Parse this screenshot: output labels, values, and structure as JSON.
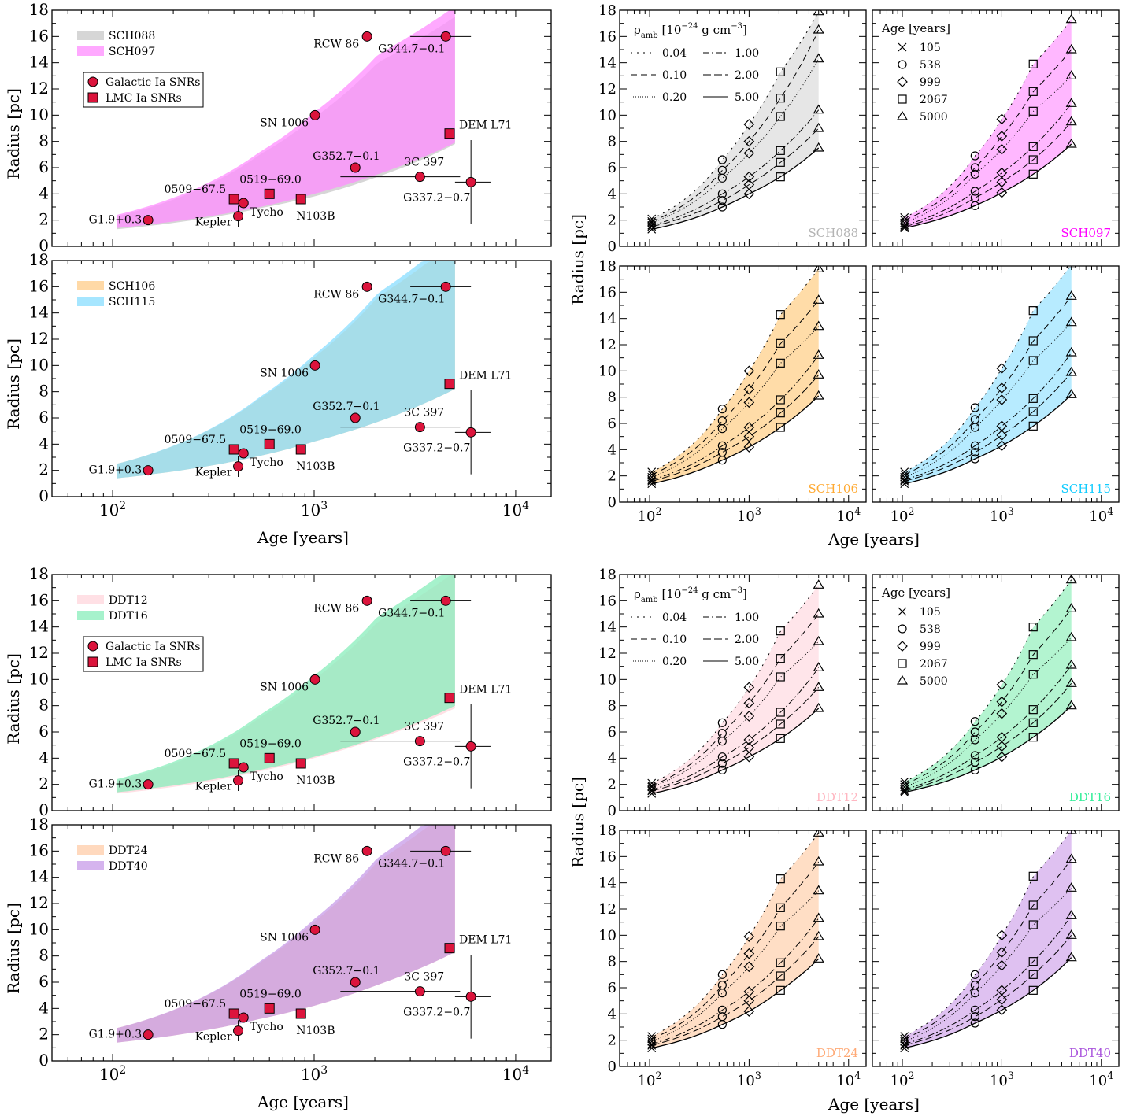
{
  "figure": {
    "ylabel": "Radius [pc]",
    "xlabel": "Age [years]",
    "density_legend_title": "ρ_amb [10^−24 g cm^−3]",
    "age_legend_title": "Age [years]",
    "snr_marker_legend": [
      "Galactic Ia SNRs",
      "LMC Ia SNRs"
    ]
  },
  "chart_data": [
    {
      "type": "area",
      "title": "",
      "xlabel": "Age [years]",
      "ylabel": "Radius [pc]",
      "xscale": "log",
      "xlim": [
        50,
        15000
      ],
      "ylim": [
        0,
        18
      ],
      "x_ticks": [
        "10^2",
        "10^3",
        "10^4"
      ],
      "y_ticks": [
        0,
        2,
        4,
        6,
        8,
        10,
        12,
        14,
        16,
        18
      ],
      "legend_position": "top-left",
      "series": [
        {
          "name": "SCH088",
          "color": "#c8c8c8",
          "lower": [
            [
              105,
              1.3
            ],
            [
              538,
              2.9
            ],
            [
              999,
              3.8
            ],
            [
              2067,
              5.3
            ],
            [
              5000,
              7.8
            ]
          ],
          "upper": [
            [
              105,
              2.3
            ],
            [
              538,
              7.0
            ],
            [
              999,
              9.8
            ],
            [
              2067,
              14.0
            ],
            [
              5000,
              17.5
            ]
          ]
        },
        {
          "name": "SCH097",
          "color": "#ff8cff",
          "lower": [
            [
              105,
              1.4
            ],
            [
              538,
              3.0
            ],
            [
              999,
              4.0
            ],
            [
              2067,
              5.5
            ],
            [
              5000,
              7.9
            ]
          ],
          "upper": [
            [
              105,
              2.4
            ],
            [
              538,
              7.2
            ],
            [
              999,
              10.2
            ],
            [
              2067,
              14.6
            ],
            [
              5000,
              18.3
            ]
          ]
        }
      ],
      "snrs": [
        {
          "name": "G1.9+0.3",
          "x": 150,
          "y": 2.0,
          "kind": "galactic"
        },
        {
          "name": "Kepler",
          "x": 420,
          "y": 2.3,
          "kind": "galactic",
          "yerr": 0.8
        },
        {
          "name": "Tycho",
          "x": 446,
          "y": 3.3,
          "kind": "galactic"
        },
        {
          "name": "0509−67.5",
          "x": 400,
          "y": 3.6,
          "kind": "lmc"
        },
        {
          "name": "0519−69.0",
          "x": 600,
          "y": 4.0,
          "kind": "lmc"
        },
        {
          "name": "N103B",
          "x": 860,
          "y": 3.6,
          "kind": "lmc"
        },
        {
          "name": "SN 1006",
          "x": 1010,
          "y": 10.0,
          "kind": "galactic"
        },
        {
          "name": "G352.7−0.1",
          "x": 1600,
          "y": 6.0,
          "kind": "galactic"
        },
        {
          "name": "RCW 86",
          "x": 1830,
          "y": 16.0,
          "kind": "galactic"
        },
        {
          "name": "3C 397",
          "x": 3350,
          "y": 5.3,
          "kind": "galactic",
          "xerr": [
            1350,
            5300
          ]
        },
        {
          "name": "G344.7−0.1",
          "x": 4500,
          "y": 16.0,
          "kind": "galactic",
          "xerr": [
            3000,
            6000
          ]
        },
        {
          "name": "DEM L71",
          "x": 4700,
          "y": 8.6,
          "kind": "lmc"
        },
        {
          "name": "G337.2−0.7",
          "x": 6000,
          "y": 4.9,
          "kind": "galactic",
          "xerr": [
            5000,
            7500
          ],
          "yerr": 3.2
        }
      ]
    },
    {
      "type": "area",
      "title": "",
      "xlabel": "Age [years]",
      "ylabel": "Radius [pc]",
      "xscale": "log",
      "xlim": [
        50,
        15000
      ],
      "ylim": [
        0,
        18
      ],
      "legend_position": "top-left",
      "series": [
        {
          "name": "SCH106",
          "color": "#ffcc88",
          "lower": [
            [
              105,
              1.4
            ],
            [
              538,
              3.1
            ],
            [
              999,
              4.2
            ],
            [
              2067,
              5.7
            ],
            [
              5000,
              8.2
            ]
          ],
          "upper": [
            [
              105,
              2.5
            ],
            [
              538,
              7.5
            ],
            [
              999,
              10.6
            ],
            [
              2067,
              15.2
            ],
            [
              5000,
              19.5
            ]
          ]
        },
        {
          "name": "SCH115",
          "color": "#88ddff",
          "lower": [
            [
              105,
              1.4
            ],
            [
              538,
              3.1
            ],
            [
              999,
              4.2
            ],
            [
              2067,
              5.7
            ],
            [
              5000,
              8.2
            ]
          ],
          "upper": [
            [
              105,
              2.5
            ],
            [
              538,
              7.6
            ],
            [
              999,
              10.8
            ],
            [
              2067,
              15.5
            ],
            [
              5000,
              20.0
            ]
          ]
        }
      ],
      "snrs": "same as panel 1"
    },
    {
      "type": "area",
      "title": "",
      "xlabel": "Age [years]",
      "ylabel": "Radius [pc]",
      "xscale": "log",
      "xlim": [
        50,
        15000
      ],
      "ylim": [
        0,
        18
      ],
      "legend_position": "top-left",
      "series": [
        {
          "name": "DDT12",
          "color": "#ffd6dc",
          "lower": [
            [
              105,
              1.3
            ],
            [
              538,
              3.0
            ],
            [
              999,
              4.0
            ],
            [
              2067,
              5.5
            ],
            [
              5000,
              7.8
            ]
          ],
          "upper": [
            [
              105,
              2.3
            ],
            [
              538,
              7.1
            ],
            [
              999,
              10.0
            ],
            [
              2067,
              14.4
            ],
            [
              5000,
              18.2
            ]
          ]
        },
        {
          "name": "DDT16",
          "color": "#88eebb",
          "lower": [
            [
              105,
              1.4
            ],
            [
              538,
              3.1
            ],
            [
              999,
              4.1
            ],
            [
              2067,
              5.6
            ],
            [
              5000,
              8.0
            ]
          ],
          "upper": [
            [
              105,
              2.4
            ],
            [
              538,
              7.3
            ],
            [
              999,
              10.3
            ],
            [
              2067,
              14.8
            ],
            [
              5000,
              18.8
            ]
          ]
        }
      ],
      "snrs": "same as panel 1"
    },
    {
      "type": "area",
      "title": "",
      "xlabel": "Age [years]",
      "ylabel": "Radius [pc]",
      "xscale": "log",
      "xlim": [
        50,
        15000
      ],
      "ylim": [
        0,
        18
      ],
      "legend_position": "top-left",
      "series": [
        {
          "name": "DDT24",
          "color": "#ffcca8",
          "lower": [
            [
              105,
              1.4
            ],
            [
              538,
              3.2
            ],
            [
              999,
              4.2
            ],
            [
              2067,
              5.8
            ],
            [
              5000,
              8.3
            ]
          ],
          "upper": [
            [
              105,
              2.5
            ],
            [
              538,
              7.5
            ],
            [
              999,
              10.6
            ],
            [
              2067,
              15.2
            ],
            [
              5000,
              19.5
            ]
          ]
        },
        {
          "name": "DDT40",
          "color": "#c79be8",
          "lower": [
            [
              105,
              1.4
            ],
            [
              538,
              3.2
            ],
            [
              999,
              4.2
            ],
            [
              2067,
              5.8
            ],
            [
              5000,
              8.3
            ]
          ],
          "upper": [
            [
              105,
              2.5
            ],
            [
              538,
              7.6
            ],
            [
              999,
              10.8
            ],
            [
              2067,
              15.5
            ],
            [
              5000,
              20.0
            ]
          ]
        }
      ],
      "snrs": "same as panel 1"
    },
    {
      "type": "scatter",
      "grid_of_models": true,
      "xscale": "log",
      "xlim": [
        50,
        15000
      ],
      "ylim": [
        0,
        18
      ],
      "densities": [
        "0.04",
        "0.10",
        "0.20",
        "1.00",
        "2.00",
        "5.00"
      ],
      "ages": [
        "105",
        "538",
        "999",
        "2067",
        "5000"
      ],
      "markers": {
        "105": "cross",
        "538": "circle",
        "999": "diamond",
        "2067": "square",
        "5000": "triangle"
      },
      "panels": [
        {
          "name": "SCH088",
          "color": "#b4b4b4",
          "fill": "#e2e2e2",
          "r": {
            "0.04": [
              2.1,
              6.6,
              9.3,
              13.3,
              17.9
            ],
            "0.10": [
              1.9,
              5.8,
              8.0,
              11.3,
              16.5
            ],
            "0.20": [
              1.8,
              5.2,
              7.1,
              9.9,
              14.3
            ],
            "1.00": [
              1.6,
              4.0,
              5.3,
              7.3,
              10.4
            ],
            "2.00": [
              1.5,
              3.5,
              4.7,
              6.4,
              9.0
            ],
            "5.00": [
              1.3,
              3.0,
              4.0,
              5.3,
              7.5
            ]
          }
        },
        {
          "name": "SCH097",
          "color": "#ff00ff",
          "fill": "#ffaaff",
          "r": {
            "0.04": [
              2.2,
              6.9,
              9.7,
              13.9,
              17.3
            ],
            "0.10": [
              2.0,
              6.0,
              8.4,
              11.8,
              15.0
            ],
            "0.20": [
              1.8,
              5.5,
              7.4,
              10.3,
              13.0
            ],
            "1.00": [
              1.6,
              4.2,
              5.6,
              7.6,
              10.9
            ],
            "2.00": [
              1.5,
              3.7,
              4.9,
              6.6,
              9.5
            ],
            "5.00": [
              1.4,
              3.1,
              4.1,
              5.5,
              7.8
            ]
          }
        },
        {
          "name": "SCH106",
          "color": "#ffaa33",
          "fill": "#ffd699",
          "r": {
            "0.04": [
              2.3,
              7.1,
              10.0,
              14.3,
              17.8
            ],
            "0.10": [
              2.1,
              6.2,
              8.6,
              12.1,
              15.4
            ],
            "0.20": [
              1.9,
              5.6,
              7.6,
              10.6,
              13.4
            ],
            "1.00": [
              1.7,
              4.3,
              5.7,
              7.8,
              11.2
            ],
            "2.00": [
              1.6,
              3.8,
              5.0,
              6.8,
              9.7
            ],
            "5.00": [
              1.4,
              3.2,
              4.2,
              5.7,
              8.1
            ]
          }
        },
        {
          "name": "SCH115",
          "color": "#11ccff",
          "fill": "#aae8ff",
          "r": {
            "0.04": [
              2.3,
              7.2,
              10.2,
              14.6,
              18.1
            ],
            "0.10": [
              2.1,
              6.3,
              8.7,
              12.3,
              15.7
            ],
            "0.20": [
              1.9,
              5.7,
              7.8,
              10.8,
              13.7
            ],
            "1.00": [
              1.7,
              4.3,
              5.8,
              7.9,
              11.4
            ],
            "2.00": [
              1.6,
              3.8,
              5.1,
              6.9,
              9.9
            ],
            "5.00": [
              1.4,
              3.3,
              4.3,
              5.8,
              8.2
            ]
          }
        },
        {
          "name": "DDT12",
          "color": "#ffb6c1",
          "fill": "#ffe0e6",
          "r": {
            "0.04": [
              2.1,
              6.7,
              9.4,
              13.7,
              17.2
            ],
            "0.10": [
              1.9,
              5.9,
              8.2,
              11.6,
              15.0
            ],
            "0.20": [
              1.8,
              5.3,
              7.2,
              10.2,
              12.9
            ],
            "1.00": [
              1.6,
              4.1,
              5.4,
              7.5,
              10.9
            ],
            "2.00": [
              1.5,
              3.6,
              4.8,
              6.6,
              9.4
            ],
            "5.00": [
              1.3,
              3.1,
              4.1,
              5.5,
              7.8
            ]
          }
        },
        {
          "name": "DDT16",
          "color": "#33ee99",
          "fill": "#a6f2c8",
          "r": {
            "0.04": [
              2.2,
              6.8,
              9.6,
              14.0,
              17.6
            ],
            "0.10": [
              2.0,
              6.0,
              8.3,
              11.9,
              15.4
            ],
            "0.20": [
              1.8,
              5.4,
              7.4,
              10.4,
              13.2
            ],
            "1.00": [
              1.6,
              4.2,
              5.6,
              7.7,
              11.1
            ],
            "2.00": [
              1.5,
              3.7,
              4.9,
              6.7,
              9.7
            ],
            "5.00": [
              1.4,
              3.1,
              4.1,
              5.6,
              8.0
            ]
          }
        },
        {
          "name": "DDT24",
          "color": "#ffaa77",
          "fill": "#ffd8bb",
          "r": {
            "0.04": [
              2.3,
              7.0,
              9.9,
              14.3,
              17.8
            ],
            "0.10": [
              2.1,
              6.2,
              8.6,
              12.1,
              15.6
            ],
            "0.20": [
              1.9,
              5.6,
              7.6,
              10.7,
              13.4
            ],
            "1.00": [
              1.7,
              4.3,
              5.7,
              7.9,
              11.3
            ],
            "2.00": [
              1.6,
              3.8,
              5.0,
              6.9,
              9.9
            ],
            "5.00": [
              1.4,
              3.2,
              4.2,
              5.8,
              8.2
            ]
          }
        },
        {
          "name": "DDT40",
          "color": "#aa55dd",
          "fill": "#d9b6ee",
          "r": {
            "0.04": [
              2.3,
              7.0,
              10.0,
              14.5,
              18.0
            ],
            "0.10": [
              2.1,
              6.2,
              8.7,
              12.3,
              15.8
            ],
            "0.20": [
              1.9,
              5.6,
              7.7,
              10.8,
              13.6
            ],
            "1.00": [
              1.7,
              4.3,
              5.8,
              8.0,
              11.5
            ],
            "2.00": [
              1.6,
              3.8,
              5.1,
              7.0,
              10.0
            ],
            "5.00": [
              1.4,
              3.3,
              4.3,
              5.8,
              8.3
            ]
          }
        }
      ]
    }
  ]
}
